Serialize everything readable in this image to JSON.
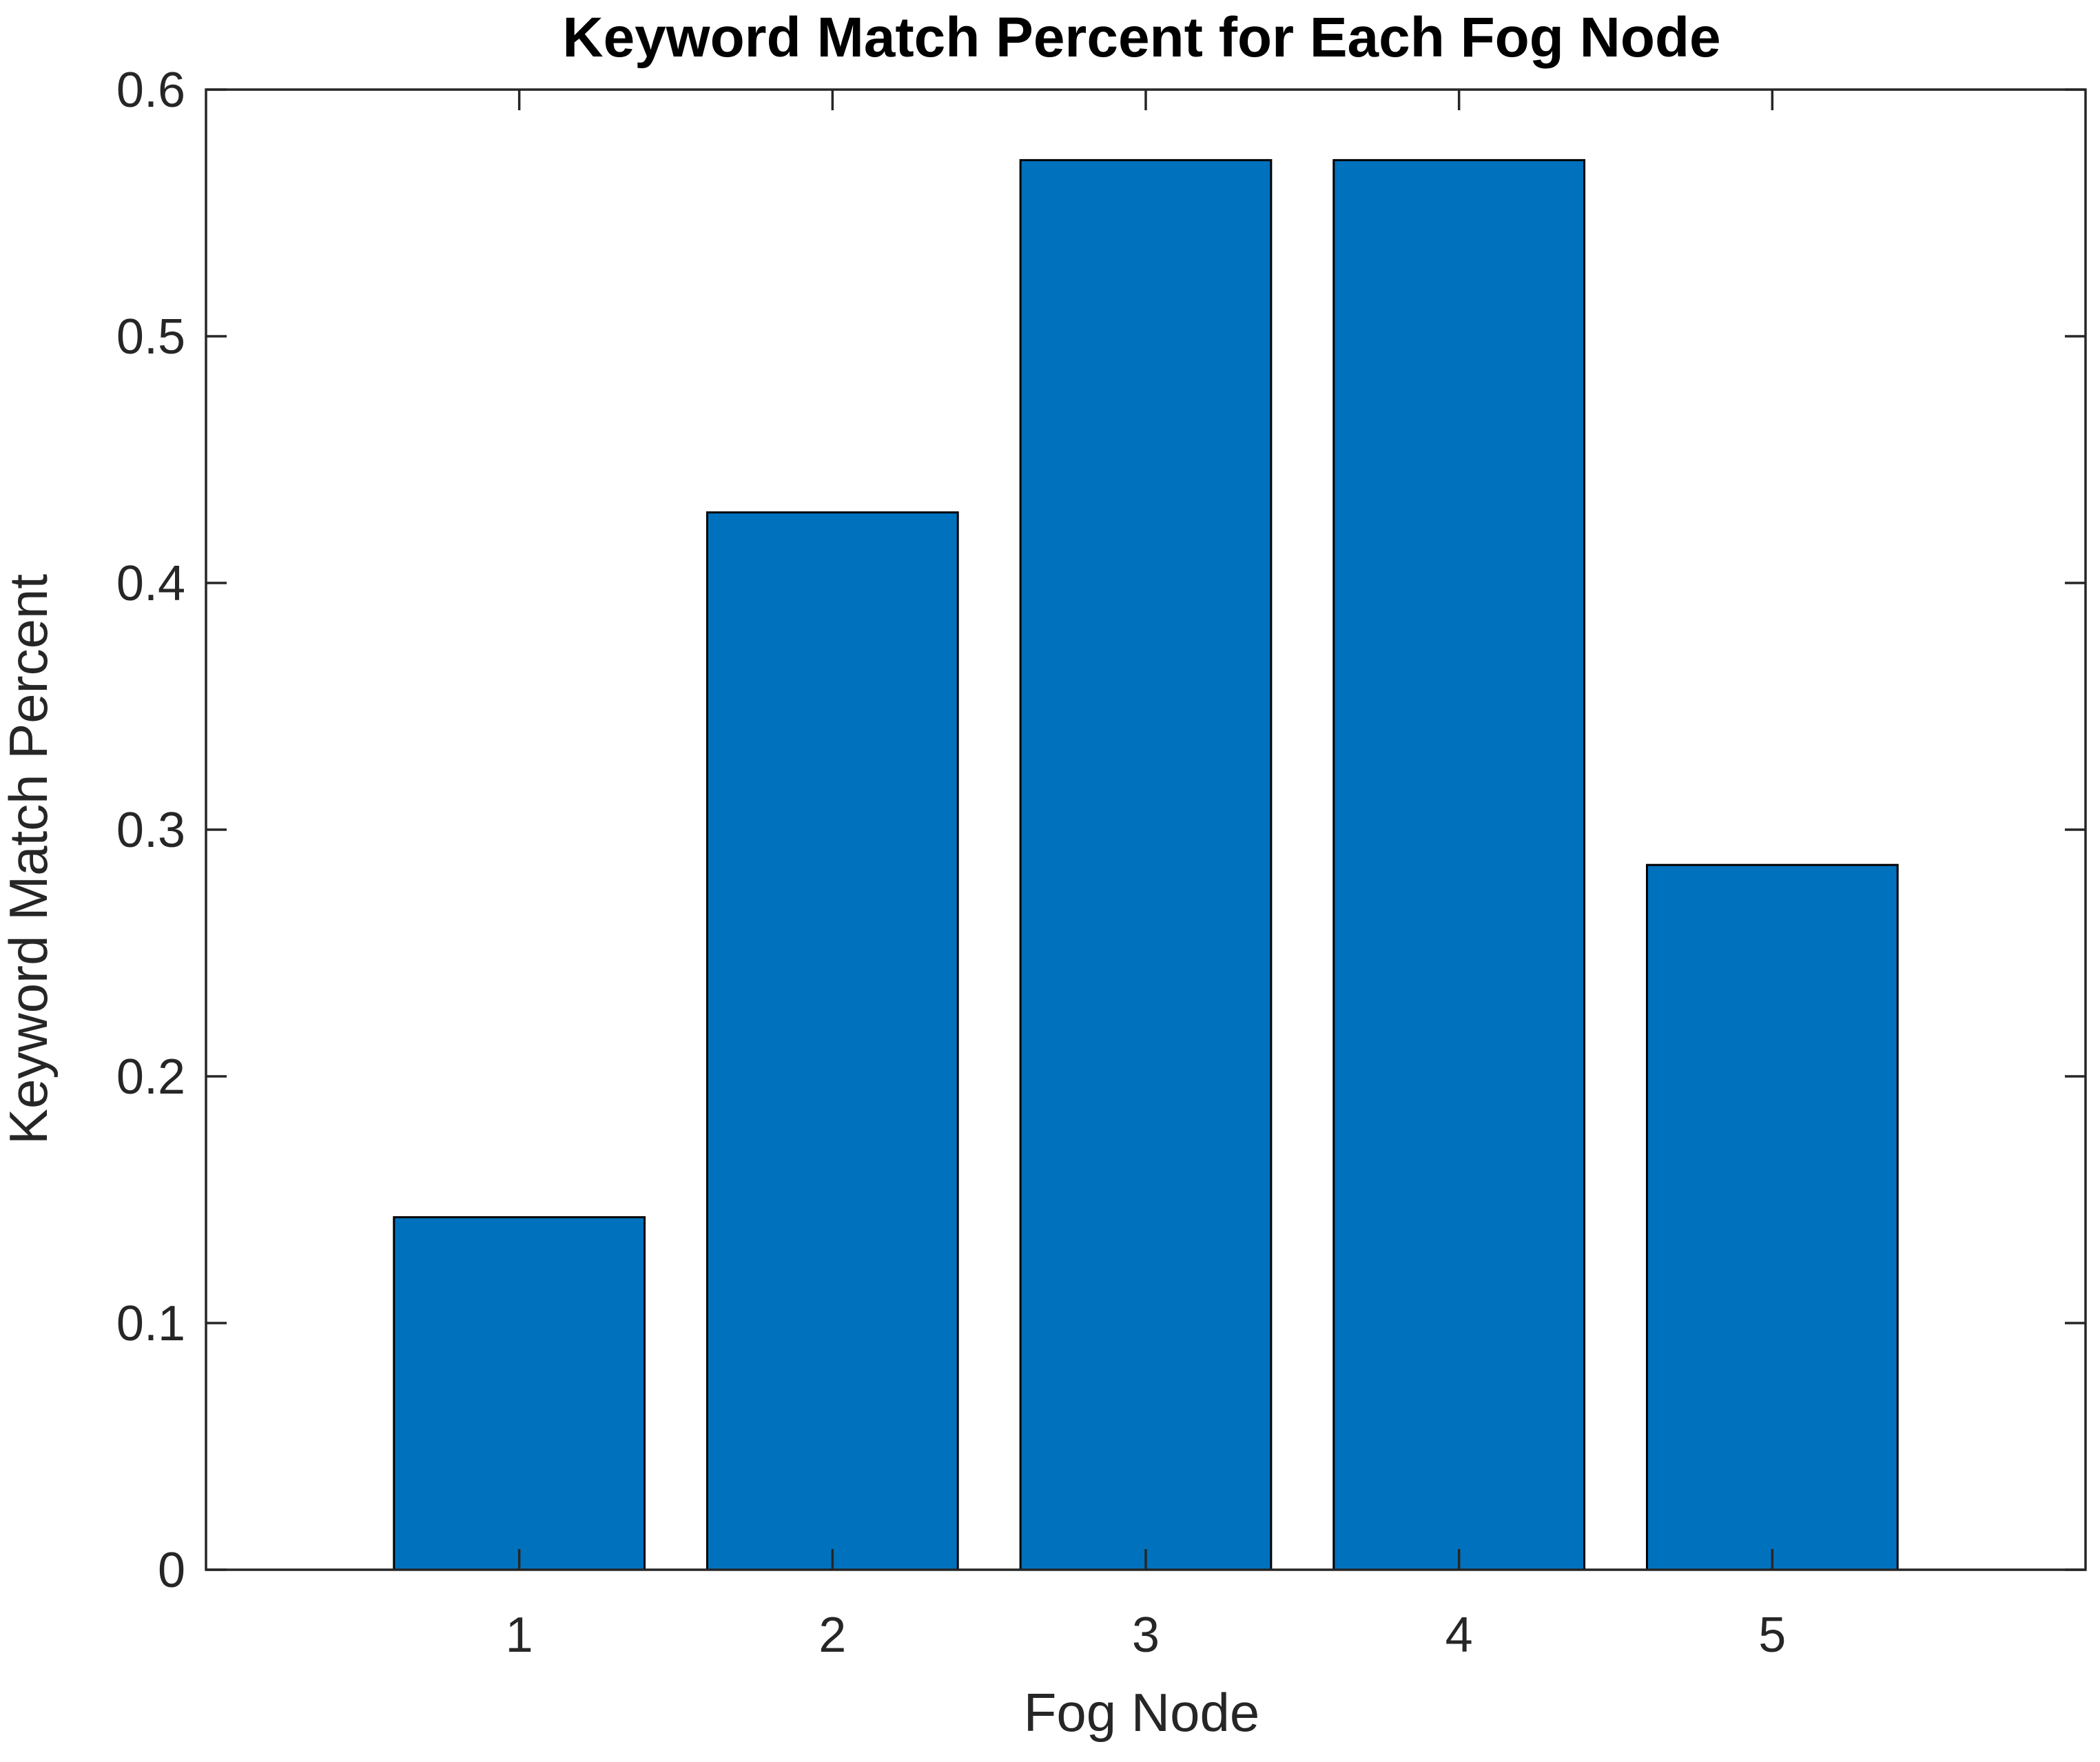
{
  "chart_data": {
    "type": "bar",
    "title": "Keyword Match Percent for Each Fog Node",
    "xlabel": "Fog Node",
    "ylabel": "Keyword Match Percent",
    "categories": [
      "1",
      "2",
      "3",
      "4",
      "5"
    ],
    "values": [
      0.1429,
      0.4286,
      0.5714,
      0.5714,
      0.2857
    ],
    "xlim": [
      0,
      6
    ],
    "ylim": [
      0,
      0.6
    ],
    "yticks": [
      0,
      0.1,
      0.2,
      0.3,
      0.4,
      0.5,
      0.6
    ],
    "ytick_labels": [
      "0",
      "0.1",
      "0.2",
      "0.3",
      "0.4",
      "0.5",
      "0.6"
    ],
    "grid": false,
    "box": true,
    "bar_color": "#0072BD",
    "bar_edge_color": "#000000",
    "axis_color": "#262626"
  }
}
